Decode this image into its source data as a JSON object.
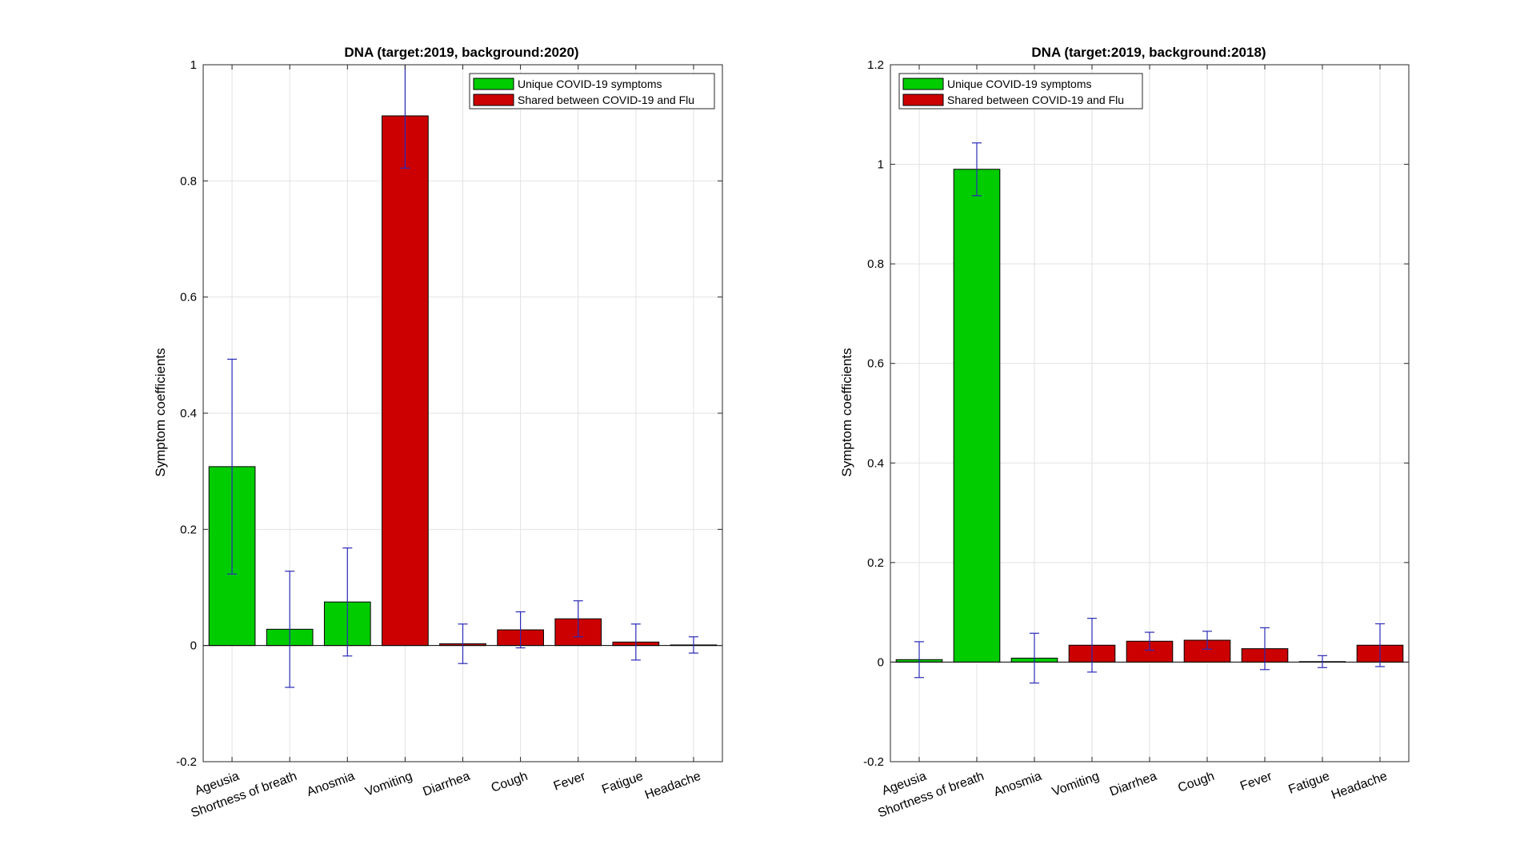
{
  "colors": {
    "unique": "#00cc00",
    "shared": "#cc0000",
    "error_bar": "#2a2ab8"
  },
  "chart_data": [
    {
      "type": "bar",
      "title": "DNA (target:2019, background:2020)",
      "xlabel": "",
      "ylabel": "Symptom coefficients",
      "categories": [
        "Ageusia",
        "Shortness of breath",
        "Anosmia",
        "Vomiting",
        "Diarrhea",
        "Cough",
        "Fever",
        "Fatigue",
        "Headache"
      ],
      "values": [
        0.308,
        0.028,
        0.075,
        0.912,
        0.003,
        0.027,
        0.046,
        0.006,
        0.001
      ],
      "errors": [
        0.185,
        0.1,
        0.093,
        0.09,
        0.034,
        0.031,
        0.031,
        0.031,
        0.014
      ],
      "groups": [
        "unique",
        "unique",
        "unique",
        "shared",
        "shared",
        "shared",
        "shared",
        "shared",
        "shared"
      ],
      "ylim": [
        -0.2,
        1
      ],
      "yticks": [
        -0.2,
        0,
        0.2,
        0.4,
        0.6,
        0.8,
        1
      ],
      "ytick_labels": [
        "-0.2",
        "0",
        "0.2",
        "0.4",
        "0.6",
        "0.8",
        "1"
      ],
      "grid": true,
      "legend_position": "top-right",
      "legend": [
        {
          "label": "Unique COVID-19 symptoms",
          "group": "unique"
        },
        {
          "label": "Shared between COVID-19 and Flu",
          "group": "shared"
        }
      ]
    },
    {
      "type": "bar",
      "title": "DNA (target:2019, background:2018)",
      "xlabel": "",
      "ylabel": "Symptom coefficients",
      "categories": [
        "Ageusia",
        "Shortness of breath",
        "Anosmia",
        "Vomiting",
        "Diarrhea",
        "Cough",
        "Fever",
        "Fatigue",
        "Headache"
      ],
      "values": [
        0.005,
        0.99,
        0.008,
        0.034,
        0.042,
        0.044,
        0.027,
        0.001,
        0.034
      ],
      "errors": [
        0.036,
        0.053,
        0.05,
        0.054,
        0.018,
        0.018,
        0.042,
        0.012,
        0.043
      ],
      "groups": [
        "unique",
        "unique",
        "unique",
        "shared",
        "shared",
        "shared",
        "shared",
        "shared",
        "shared"
      ],
      "ylim": [
        -0.2,
        1.2
      ],
      "yticks": [
        -0.2,
        0,
        0.2,
        0.4,
        0.6,
        0.8,
        1,
        1.2
      ],
      "ytick_labels": [
        "-0.2",
        "0",
        "0.2",
        "0.4",
        "0.6",
        "0.8",
        "1",
        "1.2"
      ],
      "grid": true,
      "legend_position": "top-left",
      "legend": [
        {
          "label": "Unique COVID-19 symptoms",
          "group": "unique"
        },
        {
          "label": "Shared between COVID-19 and Flu",
          "group": "shared"
        }
      ]
    }
  ]
}
